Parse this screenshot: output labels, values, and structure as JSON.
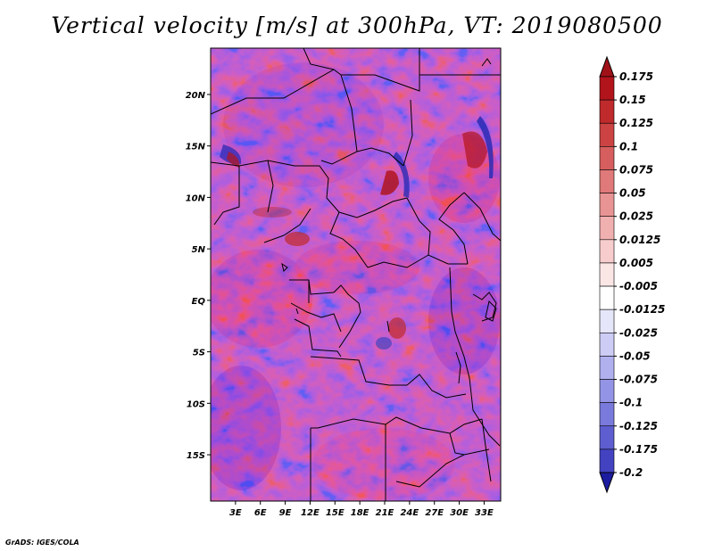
{
  "title": "Vertical velocity [m/s] at 300hPa, VT: 2019080500",
  "footer": "GrADS: IGES/COLA",
  "map": {
    "lon_range": [
      0,
      35
    ],
    "lat_range": [
      -19.5,
      24.5
    ],
    "lat_labels": [
      {
        "lat": 20,
        "text": "20N"
      },
      {
        "lat": 15,
        "text": "15N"
      },
      {
        "lat": 10,
        "text": "10N"
      },
      {
        "lat": 5,
        "text": "5N"
      },
      {
        "lat": 0,
        "text": "EQ"
      },
      {
        "lat": -5,
        "text": "5S"
      },
      {
        "lat": -10,
        "text": "10S"
      },
      {
        "lat": -15,
        "text": "15S"
      }
    ],
    "lon_labels": [
      {
        "lon": 3,
        "text": "3E"
      },
      {
        "lon": 6,
        "text": "6E"
      },
      {
        "lon": 9,
        "text": "9E"
      },
      {
        "lon": 12,
        "text": "12E"
      },
      {
        "lon": 15,
        "text": "15E"
      },
      {
        "lon": 18,
        "text": "18E"
      },
      {
        "lon": 21,
        "text": "21E"
      },
      {
        "lon": 24,
        "text": "24E"
      },
      {
        "lon": 27,
        "text": "27E"
      },
      {
        "lon": 30,
        "text": "30E"
      },
      {
        "lon": 33,
        "text": "33E"
      }
    ]
  },
  "colorbar": {
    "levels": [
      {
        "label": "0.175",
        "color": "#b2141c"
      },
      {
        "label": "0.15",
        "color": "#bf2a2c"
      },
      {
        "label": "0.125",
        "color": "#cb4343"
      },
      {
        "label": "0.1",
        "color": "#d75e5e"
      },
      {
        "label": "0.075",
        "color": "#e07979"
      },
      {
        "label": "0.05",
        "color": "#e99494"
      },
      {
        "label": "0.025",
        "color": "#f1b0b0"
      },
      {
        "label": "0.0125",
        "color": "#f7cccc"
      },
      {
        "label": "0.005",
        "color": "#fbe6e6"
      },
      {
        "label": "-0.005",
        "color": "#ffffff"
      },
      {
        "label": "-0.0125",
        "color": "#e6e6fa"
      },
      {
        "label": "-0.025",
        "color": "#ccccf5"
      },
      {
        "label": "-0.05",
        "color": "#b0b0ef"
      },
      {
        "label": "-0.075",
        "color": "#9494e6"
      },
      {
        "label": "-0.1",
        "color": "#7a7adc"
      },
      {
        "label": "-0.125",
        "color": "#5e5ed0"
      },
      {
        "label": "-0.175",
        "color": "#4343c2"
      },
      {
        "label": "-0.2",
        "color": "#2a2ab4"
      }
    ],
    "top_cap_color": "#a01218",
    "bottom_cap_color": "#1c1ca0"
  },
  "colors": {
    "positive": "#c83c3c",
    "negative": "#4646c8",
    "border": "#000000"
  }
}
